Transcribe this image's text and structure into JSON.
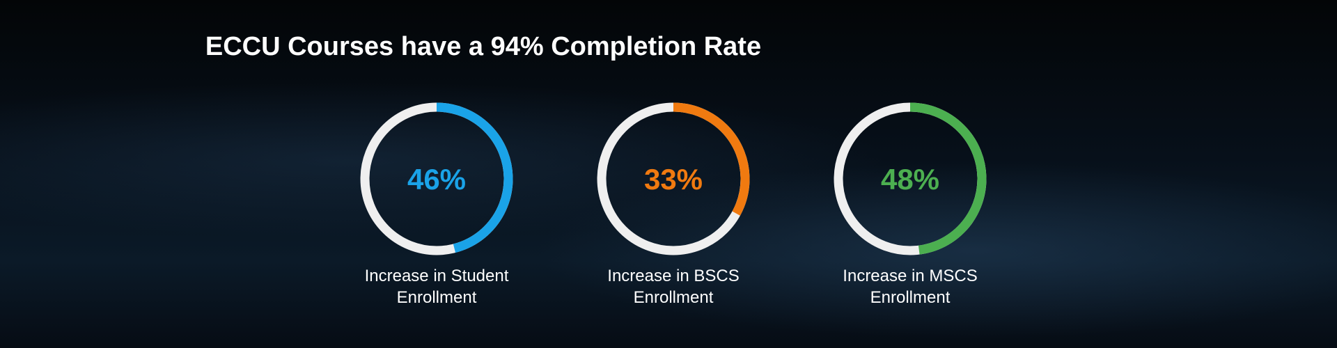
{
  "title": "ECCU Courses have a 94% Completion Rate",
  "chart_data": [
    {
      "type": "donut",
      "values": [
        46
      ],
      "value_labels": [
        "46%"
      ],
      "label": "Increase in Student Enrollment",
      "color": "#1aa3e8",
      "ylim": [
        0,
        100
      ]
    },
    {
      "type": "donut",
      "values": [
        33
      ],
      "value_labels": [
        "33%"
      ],
      "label": "Increase in BSCS Enrollment",
      "color": "#f07a10",
      "ylim": [
        0,
        100
      ]
    },
    {
      "type": "donut",
      "values": [
        48
      ],
      "value_labels": [
        "48%"
      ],
      "label": "Increase in MSCS Enrollment",
      "color": "#4caf50",
      "ylim": [
        0,
        100
      ]
    }
  ]
}
